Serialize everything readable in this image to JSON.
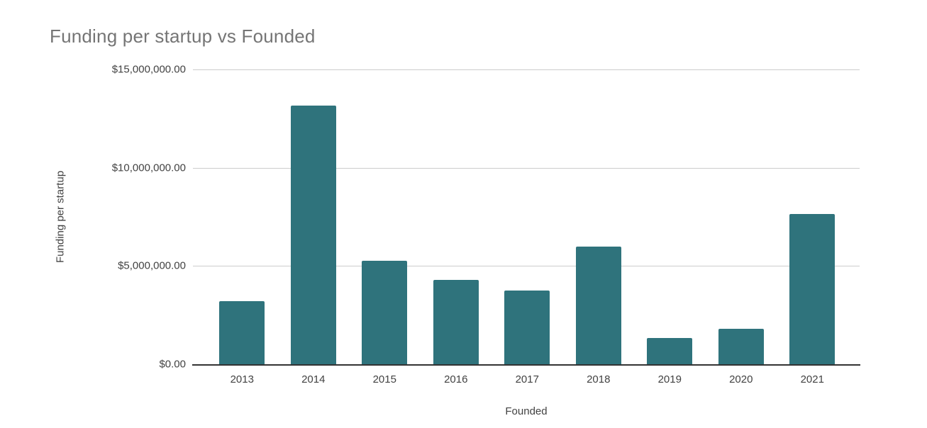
{
  "chart": {
    "title": "Funding per startup vs Founded",
    "x_axis_title": "Founded",
    "y_axis_title": "Funding per startup"
  },
  "chart_data": {
    "type": "bar",
    "title": "Funding per startup vs Founded",
    "xlabel": "Founded",
    "ylabel": "Funding per startup",
    "categories": [
      "2013",
      "2014",
      "2015",
      "2016",
      "2017",
      "2018",
      "2019",
      "2020",
      "2021"
    ],
    "values": [
      3200000,
      13150000,
      5250000,
      4300000,
      3750000,
      6000000,
      1350000,
      1800000,
      7650000
    ],
    "ylim": [
      0,
      15000000
    ],
    "yticks": [
      {
        "value": 0,
        "label": "$0.00"
      },
      {
        "value": 5000000,
        "label": "$5,000,000.00"
      },
      {
        "value": 10000000,
        "label": "$10,000,000.00"
      },
      {
        "value": 15000000,
        "label": "$15,000,000.00"
      }
    ],
    "grid": true,
    "legend_position": "none",
    "colors": {
      "bar": "#2f737c",
      "title_text": "#757575",
      "axis_label_text": "#424242",
      "gridline": "#cccccc",
      "axis_line": "#333333",
      "background": "#ffffff"
    }
  }
}
